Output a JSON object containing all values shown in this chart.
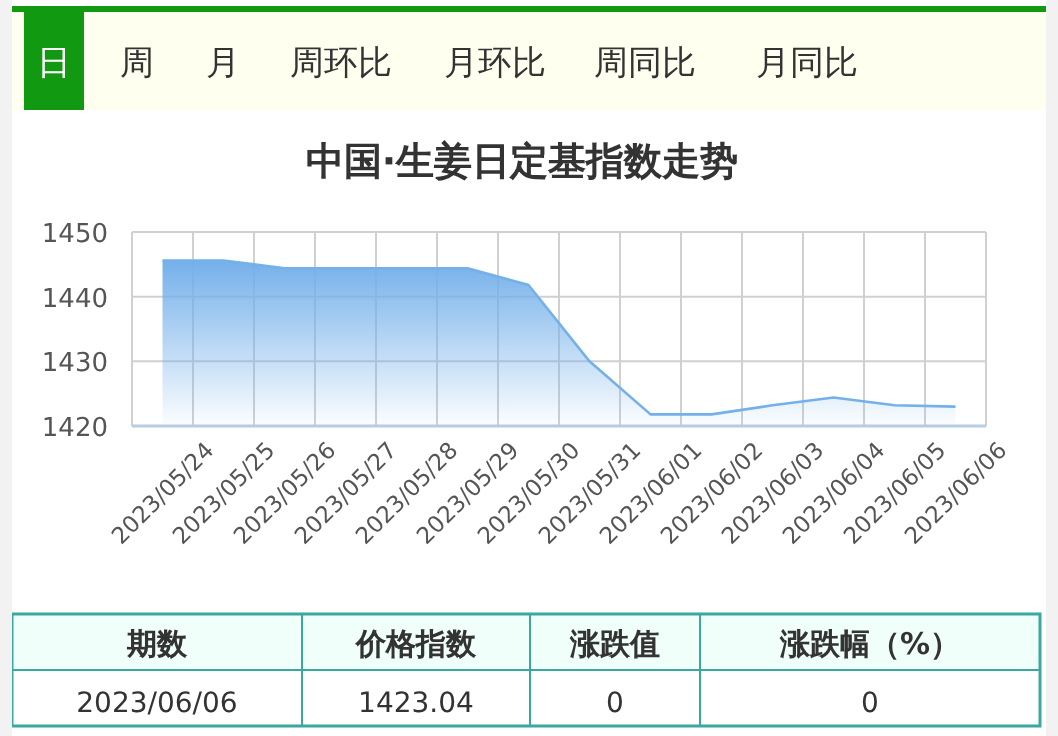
{
  "chart_data": [
    {
      "type": "other",
      "annotations": [
        "日",
        "周",
        "月",
        "周环比",
        "月环比",
        "周同比",
        "月同比"
      ]
    },
    {
      "type": "area",
      "title": "中国·生姜日定基指数走势",
      "categories": [
        "2023/05/24",
        "2023/05/25",
        "2023/05/26",
        "2023/05/27",
        "2023/05/28",
        "2023/05/29",
        "2023/05/30",
        "2023/05/31",
        "2023/06/01",
        "2023/06/02",
        "2023/06/03",
        "2023/06/04",
        "2023/06/05",
        "2023/06/06"
      ],
      "series": [
        {
          "color": "#74b0ea",
          "values": [
            1445.6,
            1445.6,
            1444.4,
            1444.4,
            1444.4,
            1444.4,
            1441.8,
            1430,
            1421.8,
            1421.8,
            1423.2,
            1424.4,
            1423.2,
            1423.0
          ]
        }
      ],
      "ylim": [
        1420,
        1450
      ],
      "yticks": [
        1420,
        1430,
        1440,
        1450
      ],
      "grid": true
    },
    {
      "type": "other",
      "annotations": [
        "期数",
        "价格指数",
        "涨跌值",
        "涨跌幅（%）",
        "2023/06/06",
        "1423.04",
        "0",
        "0"
      ]
    }
  ]
}
